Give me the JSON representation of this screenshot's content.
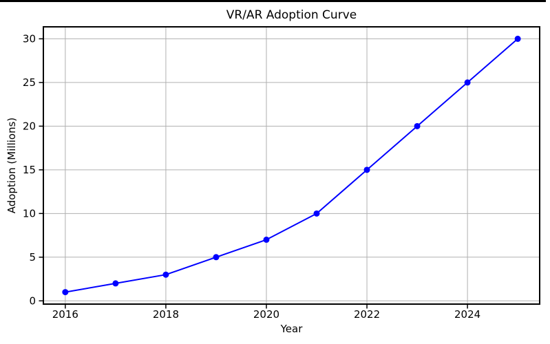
{
  "chart_data": {
    "type": "line",
    "title": "VR/AR Adoption Curve",
    "xlabel": "Year",
    "ylabel": "Adoption (Millions)",
    "x": [
      2016,
      2017,
      2018,
      2019,
      2020,
      2021,
      2022,
      2023,
      2024,
      2025
    ],
    "series": [
      {
        "name": "VR/AR Adoption",
        "values": [
          1,
          2,
          3,
          5,
          7,
          10,
          15,
          20,
          25,
          30
        ],
        "color": "#0000ff",
        "marker": "circle",
        "marker_radius": 4.5,
        "line_width": 2
      }
    ],
    "xticks": [
      2016,
      2018,
      2020,
      2022,
      2024
    ],
    "yticks": [
      0,
      5,
      10,
      15,
      20,
      25,
      30
    ],
    "xlim": [
      2015.55,
      2025.45
    ],
    "ylim": [
      -0.45,
      31.45
    ],
    "grid": true,
    "legend": "none",
    "colors": {
      "grid": "#b0b0b0",
      "spine": "#000000",
      "tick": "#000000",
      "text": "#000000",
      "background": "#ffffff",
      "top_border": "#000000"
    }
  }
}
